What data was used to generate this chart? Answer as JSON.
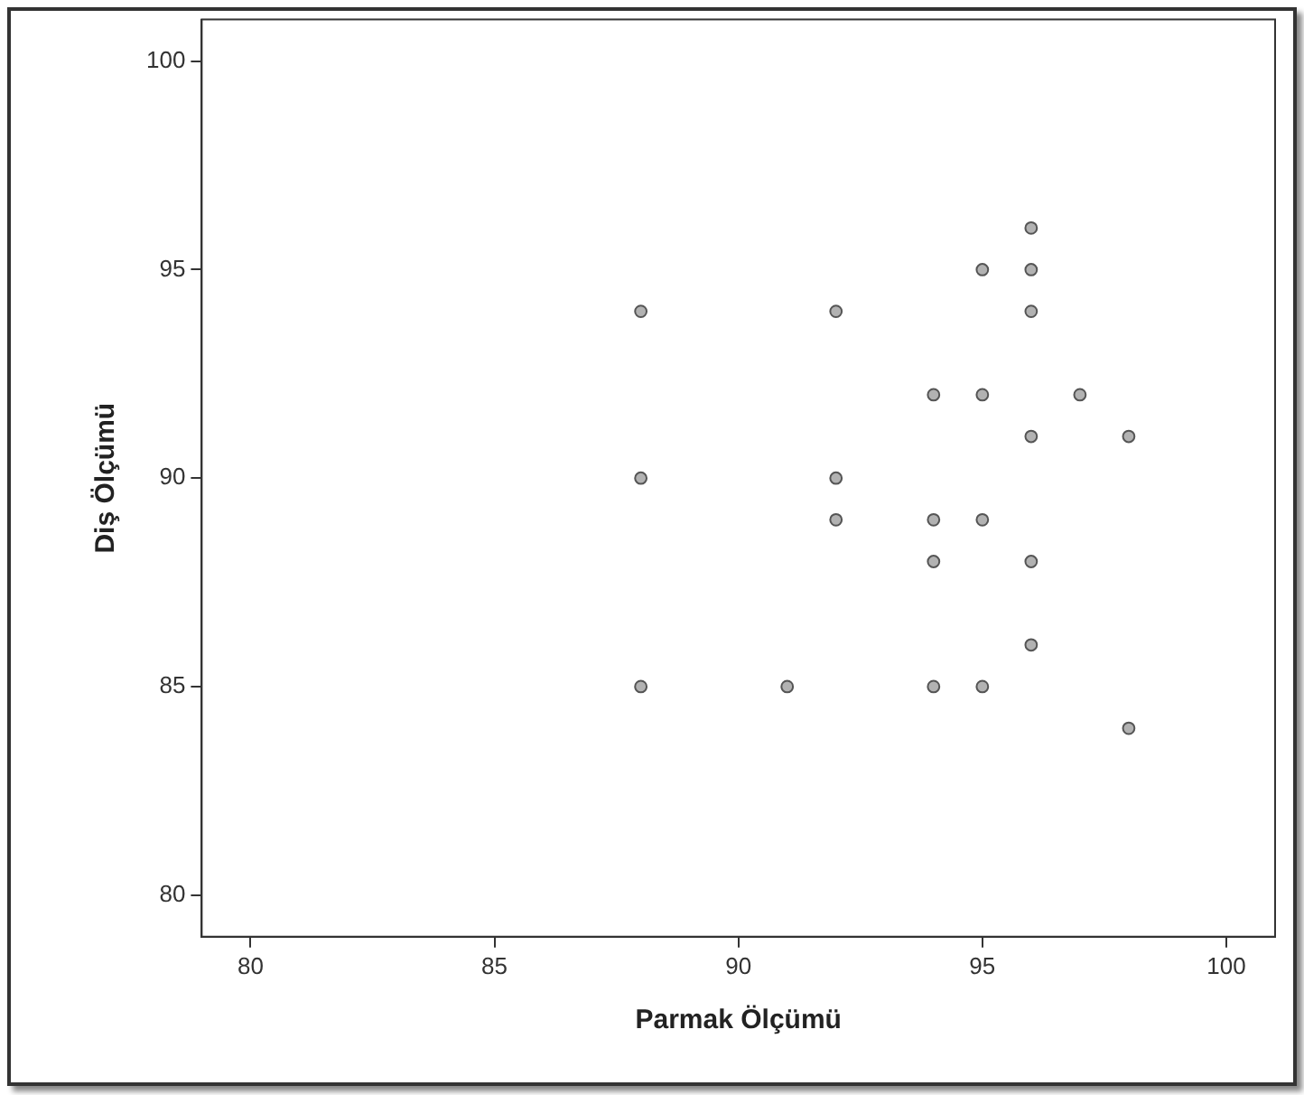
{
  "chart_data": {
    "type": "scatter",
    "xlabel": "Parmak Ölçümü",
    "ylabel": "Diş Ölçümü",
    "xlim": [
      79,
      101
    ],
    "xticks": [
      80,
      85,
      90,
      95,
      100
    ],
    "ylim": [
      79,
      101
    ],
    "yticks": [
      80,
      85,
      90,
      95,
      100
    ],
    "grid": false,
    "legend": false,
    "marker": "circle",
    "series": [
      {
        "color": "#7f7f7f",
        "x": [
          88,
          88,
          88,
          92,
          92,
          92,
          91,
          95,
          96,
          96,
          96,
          94,
          95,
          97,
          96,
          98,
          94,
          95,
          94,
          96,
          96,
          94,
          95,
          98
        ],
        "values": [
          94,
          90,
          85,
          94,
          90,
          89,
          85,
          95,
          96,
          95,
          94,
          92,
          92,
          92,
          91,
          91,
          89,
          89,
          88,
          88,
          86,
          85,
          85,
          84
        ]
      }
    ]
  }
}
